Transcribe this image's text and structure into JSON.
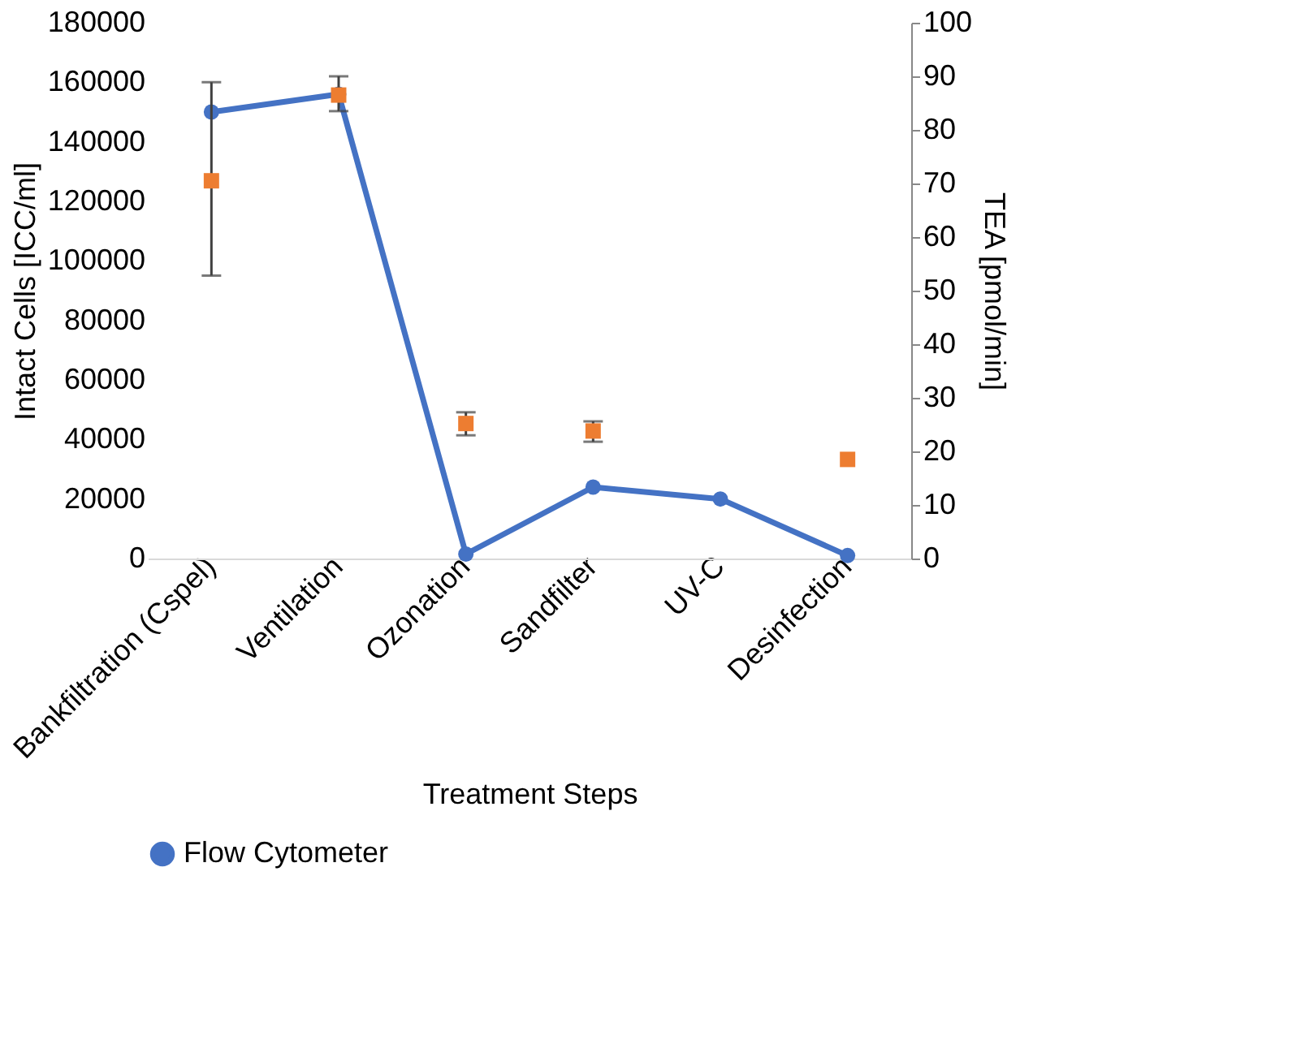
{
  "chart_data": {
    "type": "line",
    "xlabel": "Treatment Steps",
    "ylabel": "Intact Cells [ICC/ml]",
    "y2label": "TEA [pmol/min]",
    "categories": [
      "Bankfiltration (Cspel)",
      "Ventilation",
      "Ozonation",
      "Sandfilter",
      "UV-C",
      "Desinfection"
    ],
    "series": [
      {
        "name": "Flow Cytometer",
        "color": "#4472c4",
        "marker": "circle",
        "values": [
          150000,
          156000,
          1500,
          24000,
          20000,
          1000
        ]
      },
      {
        "type": "scatter",
        "axis": "y2",
        "color": "#ed7d31",
        "marker": "square",
        "values": [
          70.5,
          86.5,
          25.2,
          23.8,
          null,
          18.5
        ],
        "errors": [
          [
            52.8,
            88.9
          ],
          [
            83.5,
            90
          ],
          [
            23,
            27.3
          ],
          [
            21.8,
            25.6
          ],
          null,
          null
        ]
      }
    ],
    "ylim": [
      0,
      180000
    ],
    "yticks": [
      0,
      20000,
      40000,
      60000,
      80000,
      100000,
      120000,
      140000,
      160000,
      180000
    ],
    "y2lim": [
      0,
      100
    ],
    "y2ticks": [
      0,
      10,
      20,
      30,
      40,
      50,
      60,
      70,
      80,
      90,
      100
    ],
    "grid": false,
    "legend": "bottom"
  }
}
